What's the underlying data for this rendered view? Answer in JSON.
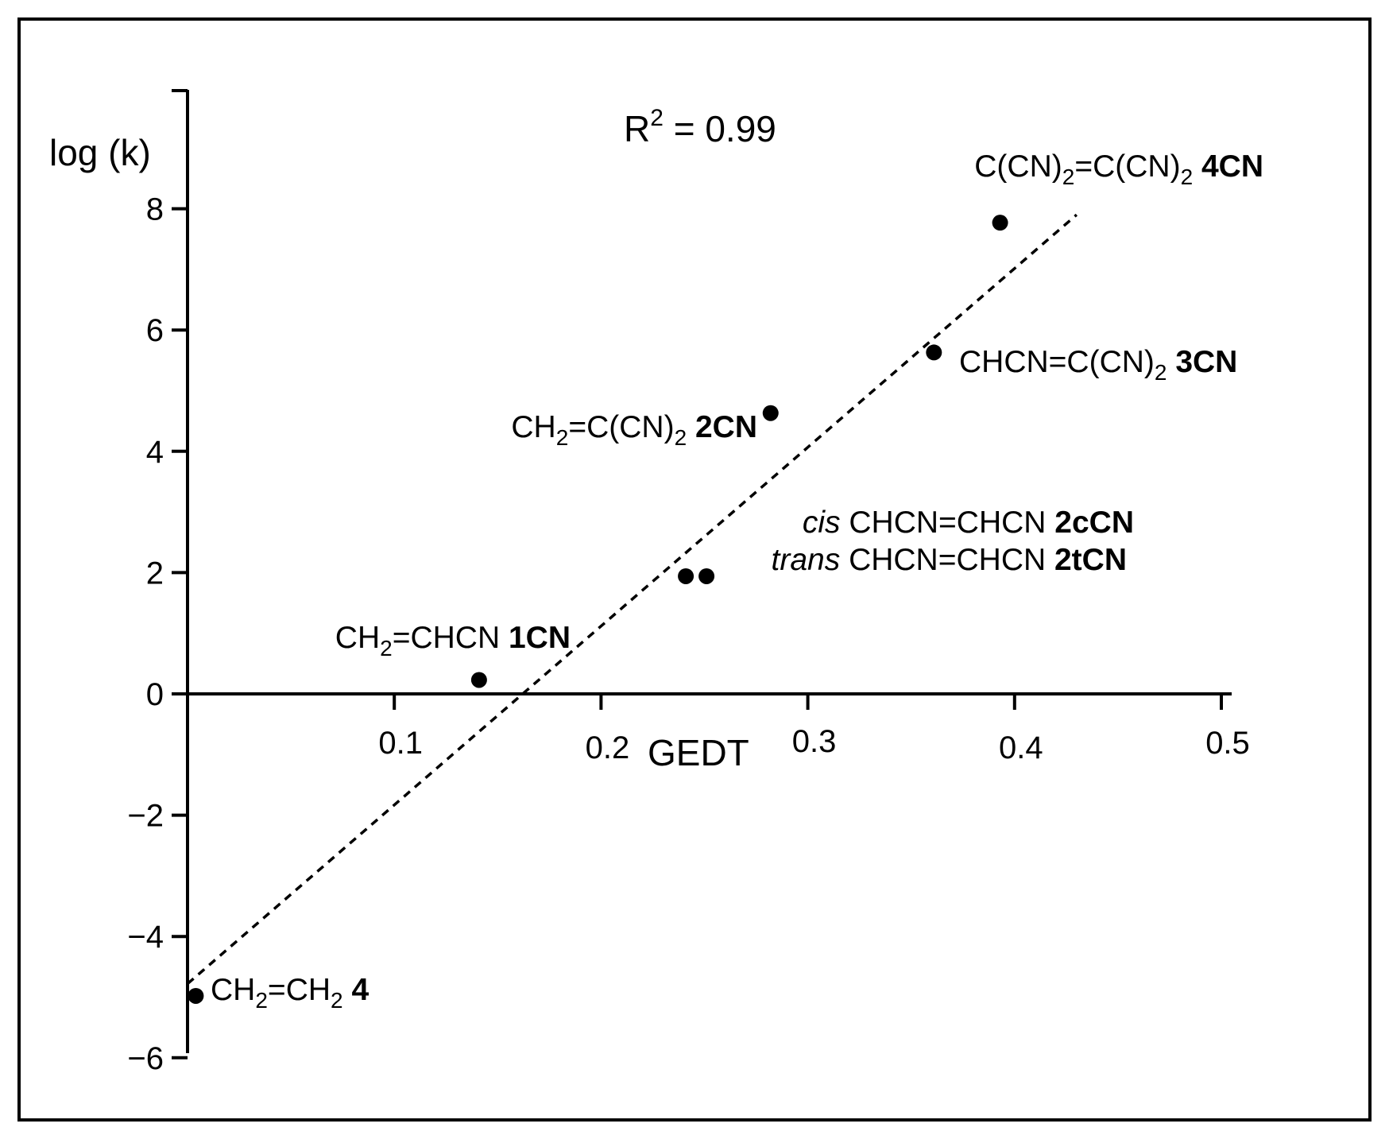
{
  "chart_data": {
    "type": "scatter",
    "xlabel": "GEDT",
    "ylabel": "log (k)",
    "xlim": [
      0,
      0.5
    ],
    "ylim": [
      -6,
      10
    ],
    "x_ticks": [
      0.1,
      0.2,
      0.3,
      0.4,
      0.5
    ],
    "x_tick_labels": [
      "0.1",
      "0.2",
      "0.3",
      "0.4",
      "0.5"
    ],
    "y_ticks": [
      -6,
      -4,
      -2,
      0,
      2,
      4,
      6,
      8
    ],
    "y_tick_labels": [
      "−6",
      "−4",
      "−2",
      "0",
      "2",
      "4",
      "6",
      "8"
    ],
    "annotation": {
      "text": "R",
      "sup": "2",
      "rest": " = 0.99"
    },
    "grid": false,
    "legend": "none",
    "points": [
      {
        "x": 0.004,
        "y": -4.98,
        "formula": [
          [
            "CH"
          ],
          [
            "2",
            "sub"
          ],
          [
            "=CH"
          ],
          [
            "2",
            "sub"
          ]
        ],
        "compound": "4"
      },
      {
        "x": 0.141,
        "y": 0.23,
        "formula": [
          [
            "CH"
          ],
          [
            "2",
            "sub"
          ],
          [
            "=CHCN"
          ]
        ],
        "compound": "1CN"
      },
      {
        "x": 0.241,
        "y": 1.94,
        "prefix": "cis",
        "formula": [
          [
            "CHCN=CHCN"
          ]
        ],
        "compound": "2cCN"
      },
      {
        "x": 0.251,
        "y": 1.94,
        "prefix": "trans",
        "formula": [
          [
            "CHCN=CHCN"
          ]
        ],
        "compound": "2tCN"
      },
      {
        "x": 0.282,
        "y": 4.63,
        "formula": [
          [
            "CH"
          ],
          [
            "2",
            "sub"
          ],
          [
            "=C(CN)"
          ],
          [
            "2",
            "sub"
          ]
        ],
        "compound": "2CN"
      },
      {
        "x": 0.361,
        "y": 5.63,
        "formula": [
          [
            "CHCN=C(CN)"
          ],
          [
            "2",
            "sub"
          ]
        ],
        "compound": "3CN"
      },
      {
        "x": 0.393,
        "y": 7.77,
        "formula": [
          [
            "C(CN)"
          ],
          [
            "2",
            "sub"
          ],
          [
            "=C(CN)"
          ],
          [
            "2",
            "sub"
          ]
        ],
        "compound": "4CN"
      }
    ],
    "trendline": {
      "style": "dashed",
      "x": [
        0,
        0.43
      ],
      "y": [
        -4.78,
        7.9
      ]
    }
  }
}
